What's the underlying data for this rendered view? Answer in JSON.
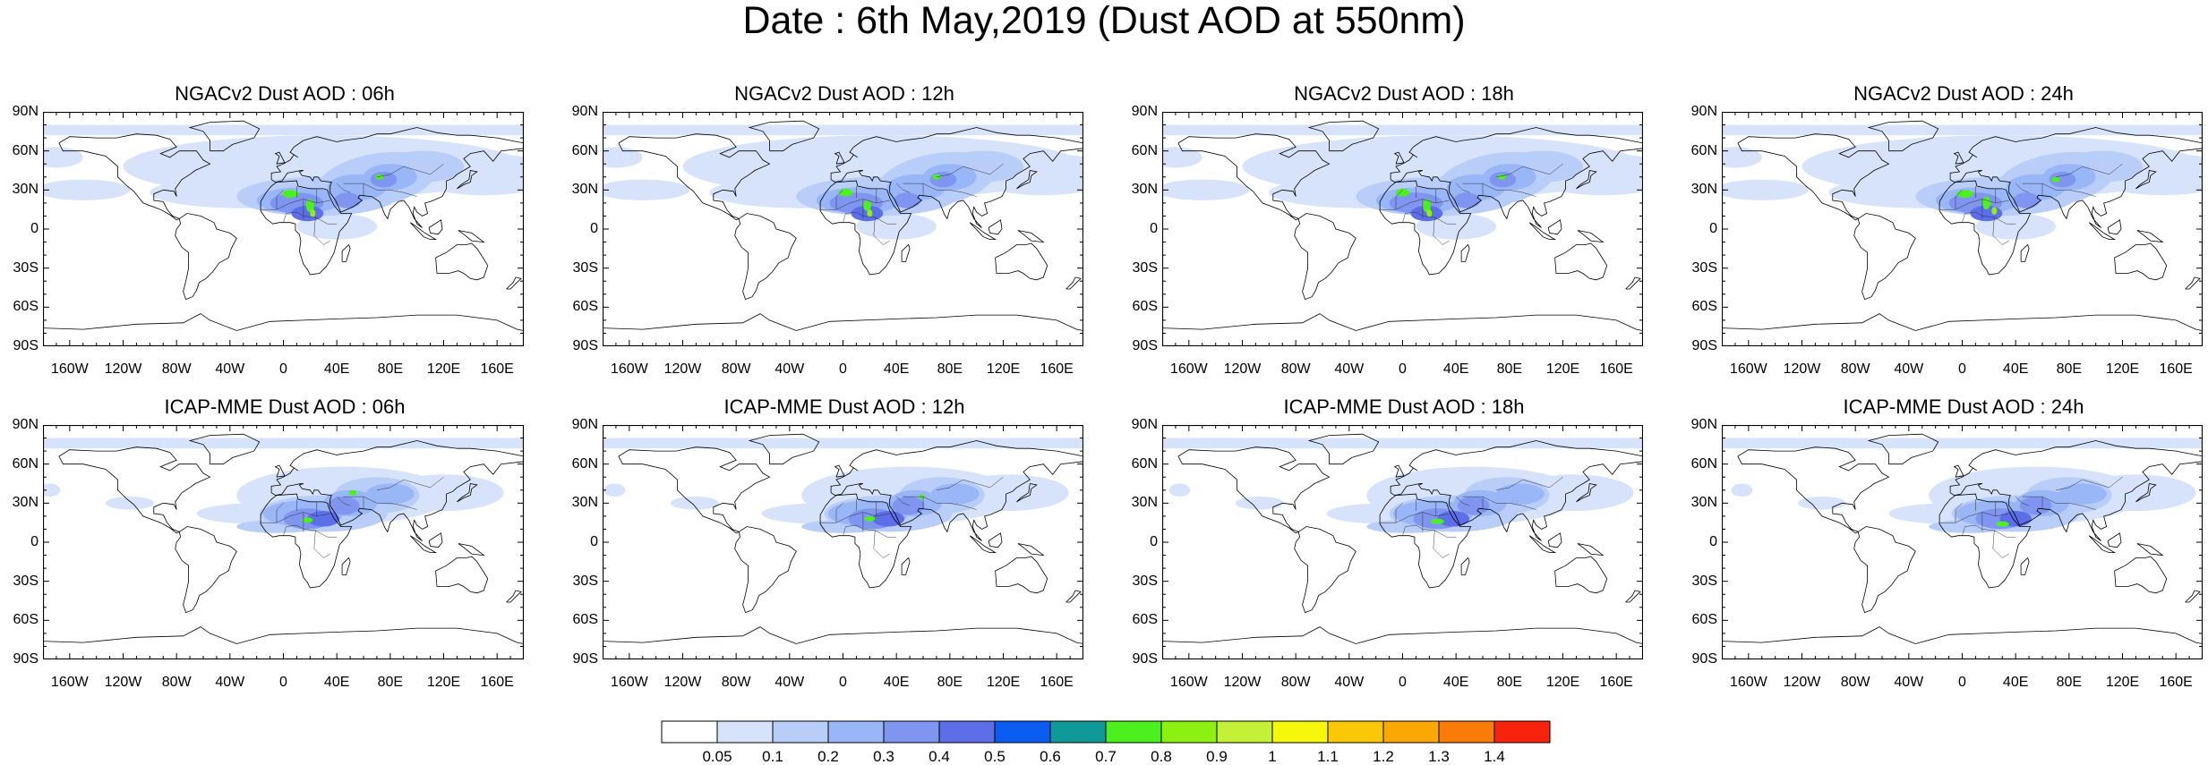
{
  "title": "Date : 6th May,2019 (Dust AOD at 550nm)",
  "lat_ticks": [
    "90N",
    "60N",
    "30N",
    "0",
    "30S",
    "60S",
    "90S"
  ],
  "lon_ticks": [
    "160W",
    "120W",
    "80W",
    "40W",
    "0",
    "40E",
    "80E",
    "120E",
    "160E"
  ],
  "panels": [
    {
      "title": "NGACv2 Dust AOD : 06h"
    },
    {
      "title": "NGACv2 Dust AOD : 12h"
    },
    {
      "title": "NGACv2 Dust AOD : 18h"
    },
    {
      "title": "NGACv2 Dust AOD : 24h"
    },
    {
      "title": "ICAP-MME Dust AOD : 06h"
    },
    {
      "title": "ICAP-MME Dust AOD : 12h"
    },
    {
      "title": "ICAP-MME Dust AOD : 18h"
    },
    {
      "title": "ICAP-MME Dust AOD : 24h"
    }
  ],
  "colorbar": {
    "labels": [
      "0.05",
      "0.1",
      "0.2",
      "0.3",
      "0.4",
      "0.5",
      "0.6",
      "0.7",
      "0.8",
      "0.9",
      "1",
      "1.1",
      "1.2",
      "1.3",
      "1.4"
    ],
    "colors": [
      "#ffffff",
      "#d7e3fb",
      "#b8cdf8",
      "#99b6f6",
      "#7f95f0",
      "#5d6ee9",
      "#0b5cf0",
      "#0f9a98",
      "#4cf01f",
      "#8cf010",
      "#c4f037",
      "#f7f70c",
      "#f9c907",
      "#fba805",
      "#fa7c08",
      "#f8230c"
    ]
  }
}
